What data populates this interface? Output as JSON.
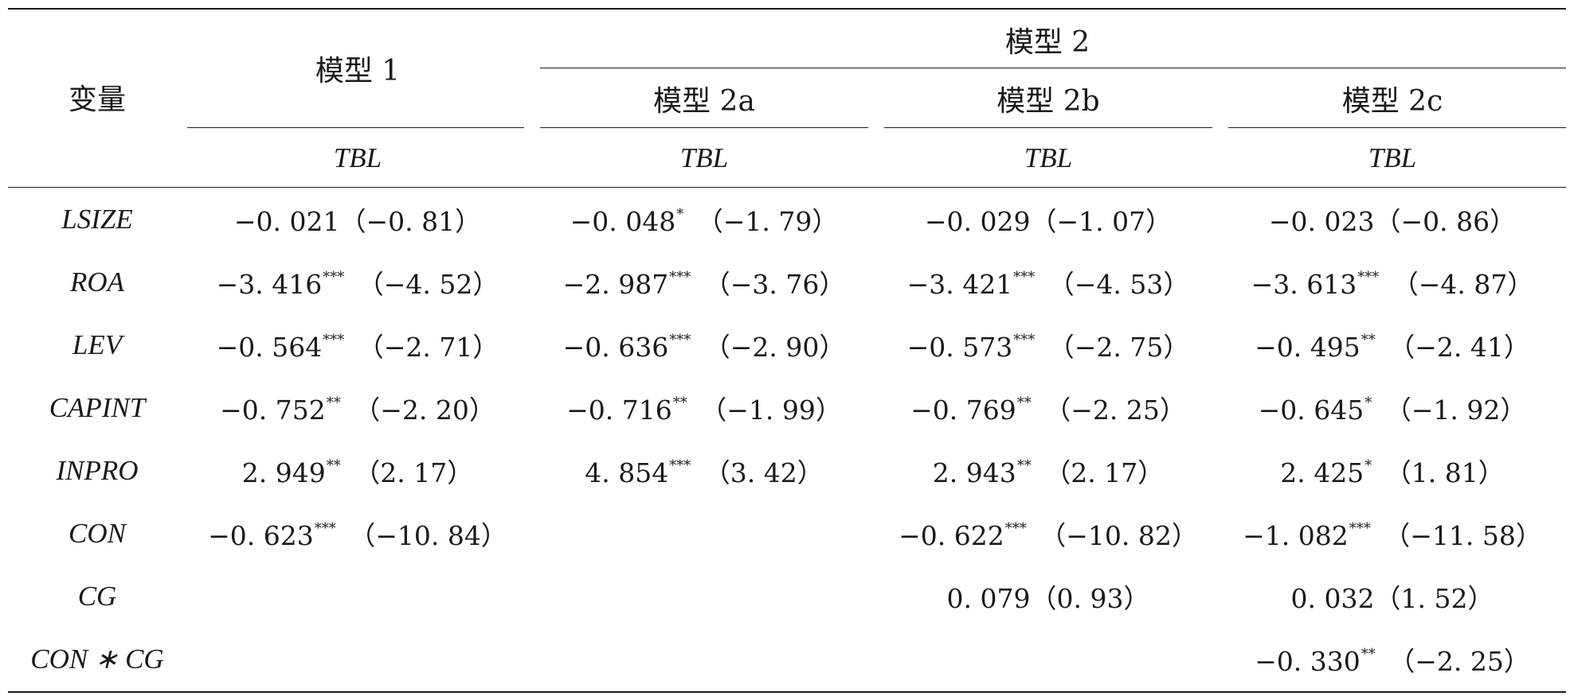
{
  "header": {
    "variable_label": "变量",
    "model1_label": "模型 1",
    "model2_label": "模型 2",
    "submodels": [
      "模型 2a",
      "模型 2b",
      "模型 2c"
    ],
    "dependent_label": "TBL"
  },
  "rows": [
    {
      "var": "LSIZE",
      "cells": [
        {
          "coef": "−0. 021",
          "stars": "",
          "t": "（−0. 81）"
        },
        {
          "coef": "−0. 048",
          "stars": "*",
          "t": "（−1. 79）"
        },
        {
          "coef": "−0. 029",
          "stars": "",
          "t": "（−1. 07）"
        },
        {
          "coef": "−0. 023",
          "stars": "",
          "t": "（−0. 86）"
        }
      ]
    },
    {
      "var": "ROA",
      "cells": [
        {
          "coef": "−3. 416",
          "stars": "***",
          "t": "（−4. 52）"
        },
        {
          "coef": "−2. 987",
          "stars": "***",
          "t": "（−3. 76）"
        },
        {
          "coef": "−3. 421",
          "stars": "***",
          "t": "（−4. 53）"
        },
        {
          "coef": "−3. 613",
          "stars": "***",
          "t": "（−4. 87）"
        }
      ]
    },
    {
      "var": "LEV",
      "cells": [
        {
          "coef": "−0. 564",
          "stars": "***",
          "t": "（−2. 71）"
        },
        {
          "coef": "−0. 636",
          "stars": "***",
          "t": "（−2. 90）"
        },
        {
          "coef": "−0. 573",
          "stars": "***",
          "t": "（−2. 75）"
        },
        {
          "coef": "−0. 495",
          "stars": "**",
          "t": "（−2. 41）"
        }
      ]
    },
    {
      "var": "CAPINT",
      "cells": [
        {
          "coef": "−0. 752",
          "stars": "**",
          "t": "（−2. 20）"
        },
        {
          "coef": "−0. 716",
          "stars": "**",
          "t": "（−1. 99）"
        },
        {
          "coef": "−0. 769",
          "stars": "**",
          "t": "（−2. 25）"
        },
        {
          "coef": "−0. 645",
          "stars": "*",
          "t": "（−1. 92）"
        }
      ]
    },
    {
      "var": "INPRO",
      "cells": [
        {
          "coef": "2. 949",
          "stars": "**",
          "t": "（2. 17）"
        },
        {
          "coef": "4. 854",
          "stars": "***",
          "t": "（3. 42）"
        },
        {
          "coef": "2. 943",
          "stars": "**",
          "t": "（2. 17）"
        },
        {
          "coef": "2. 425",
          "stars": "*",
          "t": "（1. 81）"
        }
      ]
    },
    {
      "var": "CON",
      "cells": [
        {
          "coef": "−0. 623",
          "stars": "***",
          "t": "（−10. 84）"
        },
        null,
        {
          "coef": "−0. 622",
          "stars": "***",
          "t": "（−10. 82）"
        },
        {
          "coef": "−1. 082",
          "stars": "***",
          "t": "（−11. 58）"
        }
      ]
    },
    {
      "var": "CG",
      "cells": [
        null,
        null,
        {
          "coef": "0. 079",
          "stars": "",
          "t": "（0. 93）"
        },
        {
          "coef": "0. 032",
          "stars": "",
          "t": "（1. 52）"
        }
      ]
    },
    {
      "var": "CON ∗ CG",
      "cells": [
        null,
        null,
        null,
        {
          "coef": "−0. 330",
          "stars": "**",
          "t": "（−2. 25）"
        }
      ]
    }
  ]
}
